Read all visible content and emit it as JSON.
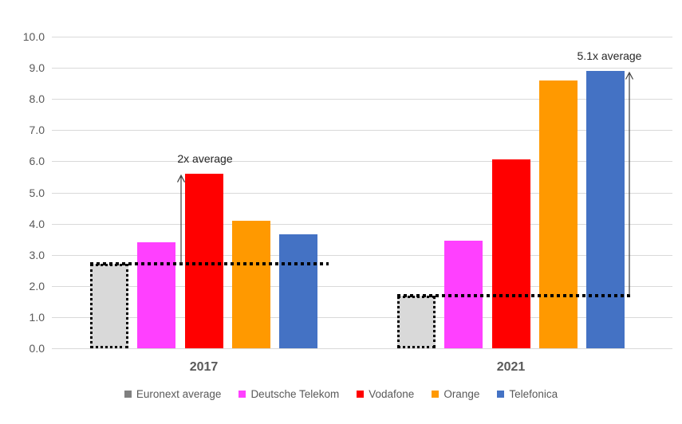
{
  "chart_data": {
    "type": "bar",
    "title": "",
    "categories": [
      "2017",
      "2021"
    ],
    "series": [
      {
        "name": "Euronext average",
        "values": [
          2.7,
          1.7
        ],
        "color": "#d9d9d9",
        "legend_color": "#808080",
        "outline": "dotted-black"
      },
      {
        "name": "Deutsche Telekom",
        "values": [
          3.4,
          3.45
        ],
        "color": "#ff40ff"
      },
      {
        "name": "Vodafone",
        "values": [
          5.6,
          6.05
        ],
        "color": "#ff0000"
      },
      {
        "name": "Orange",
        "values": [
          4.1,
          8.6
        ],
        "color": "#ff9900"
      },
      {
        "name": "Telefonica",
        "values": [
          3.65,
          8.9
        ],
        "color": "#4472c4"
      }
    ],
    "ylim": [
      0,
      10
    ],
    "ytick_step": 1,
    "ytick_labels": [
      "10.0",
      "9.0",
      "8.0",
      "7.0",
      "6.0",
      "5.0",
      "4.0",
      "3.0",
      "2.0",
      "1.0",
      "0.0"
    ],
    "grid": true,
    "gridline_color": "#d9d9d9",
    "axis_label_color": "#595959",
    "legend_position": "bottom",
    "average_lines": [
      {
        "category": "2017",
        "value": 2.7,
        "style": "dotted-black"
      },
      {
        "category": "2021",
        "value": 1.7,
        "style": "dotted-black"
      }
    ],
    "annotations": [
      {
        "text": "2x average",
        "category": "2017",
        "from_value": 2.7,
        "to_value": 5.6
      },
      {
        "text": "5.1x average",
        "category": "2021",
        "from_value": 1.7,
        "to_value": 8.9
      }
    ]
  }
}
